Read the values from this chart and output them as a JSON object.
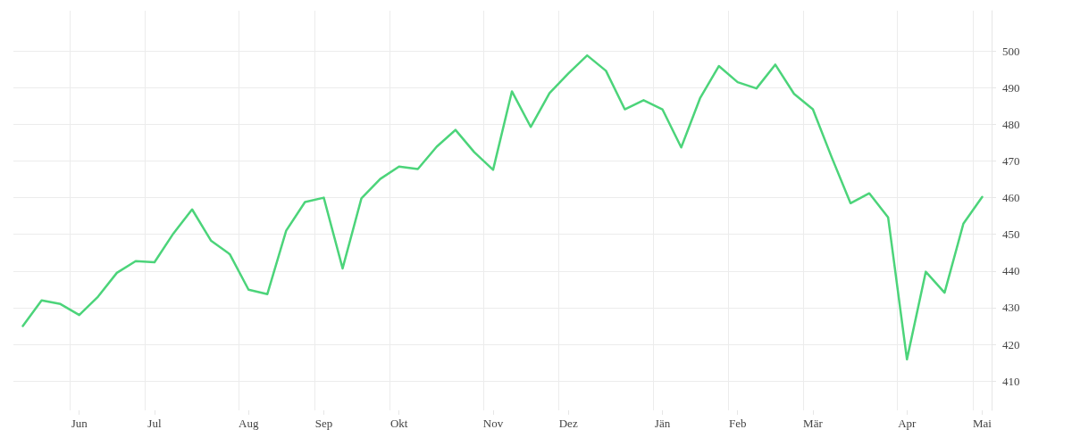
{
  "chart_data": {
    "type": "line",
    "categories": [
      null,
      null,
      null,
      "Jun",
      null,
      null,
      null,
      "Jul",
      null,
      null,
      null,
      null,
      "Aug",
      null,
      null,
      null,
      "Sep",
      null,
      null,
      null,
      "Okt",
      null,
      null,
      null,
      null,
      "Nov",
      null,
      null,
      null,
      "Dez",
      null,
      null,
      null,
      null,
      "Jän",
      null,
      null,
      null,
      "Feb",
      null,
      null,
      null,
      "Mär",
      null,
      null,
      null,
      null,
      "Apr",
      null,
      null,
      null,
      "Mai"
    ],
    "series": [
      {
        "color": "#4cd47a",
        "values": [
          425,
          432,
          431,
          428,
          433,
          439.5,
          442.7,
          442.4,
          450.2,
          456.8,
          448.3,
          444.6,
          434.9,
          433.7,
          451,
          458.8,
          460,
          440.7,
          459.8,
          465.1,
          468.5,
          467.8,
          473.9,
          478.5,
          472.4,
          467.6,
          489,
          479.3,
          488.5,
          493.9,
          498.8,
          494.6,
          484.1,
          486.6,
          484.1,
          473.7,
          487.1,
          495.9,
          491.5,
          489.8,
          496.3,
          488.3,
          484.1,
          471,
          458.5,
          461.2,
          454.6,
          415.9,
          439.8,
          434.1,
          452.9,
          460.2
        ]
      }
    ],
    "ylim": [
      402,
      511
    ],
    "yticks": [
      410,
      420,
      430,
      440,
      450,
      460,
      470,
      480,
      490,
      500
    ],
    "grid": true,
    "marker": "none",
    "line_style": "solid"
  }
}
